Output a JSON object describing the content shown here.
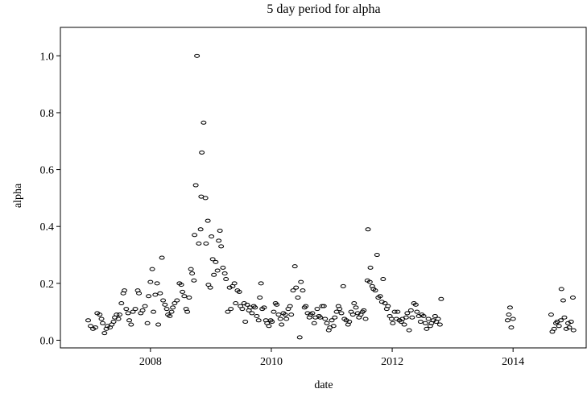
{
  "chart_data": {
    "type": "scatter",
    "title": "5 day period for alpha",
    "x_label": "date",
    "y_label": "alpha",
    "color": "#000000",
    "grid": false,
    "xlim": [
      2006.51,
      2015.21
    ],
    "ylim": [
      -0.027,
      1.1
    ],
    "xticks": [
      2008,
      2010,
      2012,
      2014
    ],
    "yticks": [
      {
        "value": 0,
        "label": "0.0"
      },
      0.2,
      0.4,
      0.6,
      0.8,
      {
        "value": 1,
        "label": "1.0"
      }
    ],
    "x": [
      2006.97,
      2007.01,
      2007.05,
      2007.09,
      2007.12,
      2007.16,
      2007.19,
      2007.21,
      2007.24,
      2007.27,
      2007.29,
      2007.33,
      2007.36,
      2007.39,
      2007.41,
      2007.44,
      2007.47,
      2007.49,
      2007.52,
      2007.55,
      2007.57,
      2007.6,
      2007.63,
      2007.65,
      2007.68,
      2007.71,
      2007.75,
      2007.79,
      2007.81,
      2007.84,
      2007.87,
      2007.91,
      2007.95,
      2007.97,
      2008.0,
      2008.03,
      2008.05,
      2008.08,
      2008.11,
      2008.13,
      2008.16,
      2008.19,
      2008.21,
      2008.24,
      2008.27,
      2008.29,
      2008.32,
      2008.35,
      2008.37,
      2008.4,
      2008.44,
      2008.48,
      2008.51,
      2008.53,
      2008.56,
      2008.59,
      2008.61,
      2008.64,
      2008.67,
      2008.69,
      2008.72,
      2008.73,
      2008.75,
      2008.77,
      2008.8,
      2008.83,
      2008.84,
      2008.85,
      2008.88,
      2008.91,
      2008.92,
      2008.95,
      2008.96,
      2008.99,
      2009.01,
      2009.03,
      2009.05,
      2009.08,
      2009.11,
      2009.13,
      2009.15,
      2009.17,
      2009.2,
      2009.23,
      2009.25,
      2009.28,
      2009.31,
      2009.33,
      2009.36,
      2009.39,
      2009.41,
      2009.44,
      2009.47,
      2009.49,
      2009.52,
      2009.55,
      2009.57,
      2009.6,
      2009.63,
      2009.65,
      2009.68,
      2009.71,
      2009.73,
      2009.76,
      2009.79,
      2009.81,
      2009.83,
      2009.85,
      2009.88,
      2009.91,
      2009.93,
      2009.96,
      2009.99,
      2010.01,
      2010.04,
      2010.07,
      2010.09,
      2010.12,
      2010.15,
      2010.17,
      2010.2,
      2010.23,
      2010.25,
      2010.28,
      2010.31,
      2010.33,
      2010.36,
      2010.39,
      2010.41,
      2010.44,
      2010.47,
      2010.49,
      2010.52,
      2010.55,
      2010.57,
      2010.6,
      2010.63,
      2010.65,
      2010.68,
      2010.71,
      2010.73,
      2010.76,
      2010.79,
      2010.81,
      2010.84,
      2010.87,
      2010.89,
      2010.92,
      2010.95,
      2010.97,
      2011.0,
      2011.03,
      2011.05,
      2011.08,
      2011.11,
      2011.13,
      2011.16,
      2011.19,
      2011.21,
      2011.24,
      2011.27,
      2011.29,
      2011.32,
      2011.35,
      2011.37,
      2011.4,
      2011.43,
      2011.45,
      2011.48,
      2011.51,
      2011.53,
      2011.56,
      2011.59,
      2011.6,
      2011.63,
      2011.64,
      2011.67,
      2011.69,
      2011.72,
      2011.75,
      2011.77,
      2011.8,
      2011.83,
      2011.85,
      2011.88,
      2011.91,
      2011.93,
      2011.96,
      2011.99,
      2012.01,
      2012.04,
      2012.07,
      2012.09,
      2012.12,
      2012.15,
      2012.17,
      2012.2,
      2012.23,
      2012.25,
      2012.28,
      2012.31,
      2012.33,
      2012.36,
      2012.39,
      2012.41,
      2012.44,
      2012.47,
      2012.49,
      2012.52,
      2012.55,
      2012.57,
      2012.6,
      2012.63,
      2012.65,
      2012.68,
      2012.71,
      2012.73,
      2012.76,
      2012.79,
      2012.81,
      2013.91,
      2013.93,
      2013.95,
      2013.97,
      2014.0,
      2014.63,
      2014.65,
      2014.68,
      2014.71,
      2014.73,
      2014.76,
      2014.79,
      2014.8,
      2014.83,
      2014.85,
      2014.88,
      2014.91,
      2014.93,
      2014.96,
      2014.99,
      2015.0
    ],
    "values": [
      0.07,
      0.05,
      0.04,
      0.045,
      0.095,
      0.09,
      0.075,
      0.06,
      0.025,
      0.04,
      0.05,
      0.045,
      0.055,
      0.065,
      0.08,
      0.09,
      0.075,
      0.09,
      0.13,
      0.165,
      0.175,
      0.11,
      0.095,
      0.07,
      0.055,
      0.1,
      0.11,
      0.175,
      0.165,
      0.095,
      0.105,
      0.12,
      0.06,
      0.155,
      0.205,
      0.25,
      0.1,
      0.16,
      0.2,
      0.055,
      0.165,
      0.29,
      0.14,
      0.125,
      0.11,
      0.09,
      0.085,
      0.1,
      0.115,
      0.13,
      0.14,
      0.2,
      0.195,
      0.17,
      0.155,
      0.11,
      0.1,
      0.15,
      0.25,
      0.235,
      0.21,
      0.37,
      0.545,
      1.0,
      0.34,
      0.39,
      0.505,
      0.66,
      0.765,
      0.5,
      0.34,
      0.42,
      0.195,
      0.185,
      0.365,
      0.285,
      0.23,
      0.275,
      0.245,
      0.35,
      0.385,
      0.33,
      0.255,
      0.235,
      0.215,
      0.1,
      0.185,
      0.11,
      0.19,
      0.2,
      0.13,
      0.175,
      0.17,
      0.12,
      0.11,
      0.13,
      0.065,
      0.125,
      0.105,
      0.115,
      0.095,
      0.12,
      0.115,
      0.085,
      0.07,
      0.15,
      0.2,
      0.11,
      0.115,
      0.07,
      0.06,
      0.05,
      0.07,
      0.065,
      0.1,
      0.13,
      0.125,
      0.09,
      0.075,
      0.055,
      0.095,
      0.09,
      0.075,
      0.11,
      0.12,
      0.09,
      0.175,
      0.26,
      0.185,
      0.15,
      0.01,
      0.205,
      0.175,
      0.115,
      0.12,
      0.095,
      0.08,
      0.09,
      0.095,
      0.06,
      0.08,
      0.11,
      0.085,
      0.08,
      0.12,
      0.12,
      0.075,
      0.06,
      0.035,
      0.045,
      0.07,
      0.05,
      0.08,
      0.1,
      0.12,
      0.11,
      0.095,
      0.19,
      0.075,
      0.07,
      0.055,
      0.065,
      0.1,
      0.09,
      0.13,
      0.115,
      0.095,
      0.08,
      0.09,
      0.1,
      0.105,
      0.075,
      0.21,
      0.39,
      0.205,
      0.255,
      0.19,
      0.18,
      0.175,
      0.3,
      0.15,
      0.155,
      0.135,
      0.215,
      0.13,
      0.11,
      0.12,
      0.085,
      0.075,
      0.06,
      0.1,
      0.075,
      0.1,
      0.07,
      0.065,
      0.075,
      0.055,
      0.08,
      0.095,
      0.035,
      0.105,
      0.08,
      0.13,
      0.125,
      0.1,
      0.085,
      0.065,
      0.09,
      0.085,
      0.06,
      0.04,
      0.075,
      0.05,
      0.06,
      0.07,
      0.085,
      0.065,
      0.075,
      0.055,
      0.145,
      0.07,
      0.09,
      0.115,
      0.045,
      0.075,
      0.09,
      0.03,
      0.04,
      0.06,
      0.065,
      0.05,
      0.07,
      0.18,
      0.14,
      0.08,
      0.04,
      0.06,
      0.045,
      0.065,
      0.15,
      0.035
    ]
  }
}
